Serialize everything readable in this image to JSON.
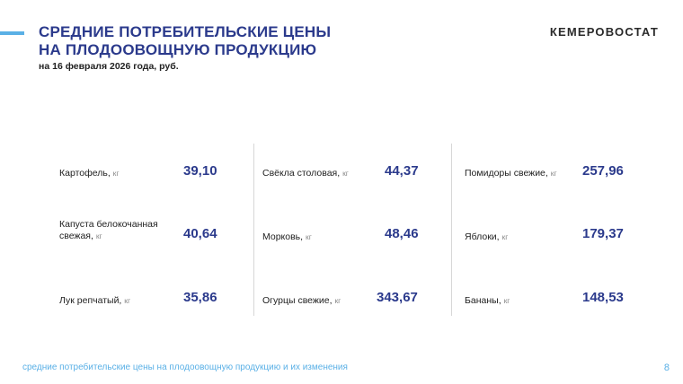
{
  "header": {
    "title_line1": "СРЕДНИЕ ПОТРЕБИТЕЛЬСКИЕ ЦЕНЫ",
    "title_line2": "НА ПЛОДООВОЩНУЮ ПРОДУКЦИЮ",
    "subtitle": "на 16 февраля 2026 года, руб.",
    "brand": "КЕМЕРОВОСТАТ"
  },
  "columns": [
    {
      "items": [
        {
          "name": "Картофель,",
          "unit": "кг",
          "price": "39,10"
        },
        {
          "name_line1": "Капуста белокочанная",
          "name": "свежая,",
          "unit": "кг",
          "price": "40,64"
        },
        {
          "name": "Лук репчатый,",
          "unit": "кг",
          "price": "35,86"
        }
      ]
    },
    {
      "items": [
        {
          "name": "Свёкла столовая,",
          "unit": "кг",
          "price": "44,37"
        },
        {
          "name": "Морковь,",
          "unit": "кг",
          "price": "48,46"
        },
        {
          "name": "Огурцы свежие,",
          "unit": "кг",
          "price": "343,67"
        }
      ]
    },
    {
      "items": [
        {
          "name": "Помидоры свежие,",
          "unit": "кг",
          "price": "257,96"
        },
        {
          "name": "Яблоки,",
          "unit": "кг",
          "price": "179,37"
        },
        {
          "name": "Бананы,",
          "unit": "кг",
          "price": "148,53"
        }
      ]
    }
  ],
  "footer": {
    "text": "средние потребительские цены на плодоовощную продукцию и их изменения",
    "page": "8"
  },
  "colors": {
    "title": "#2b3a8c",
    "accent": "#5ab0e6",
    "price": "#2b3a8c"
  }
}
